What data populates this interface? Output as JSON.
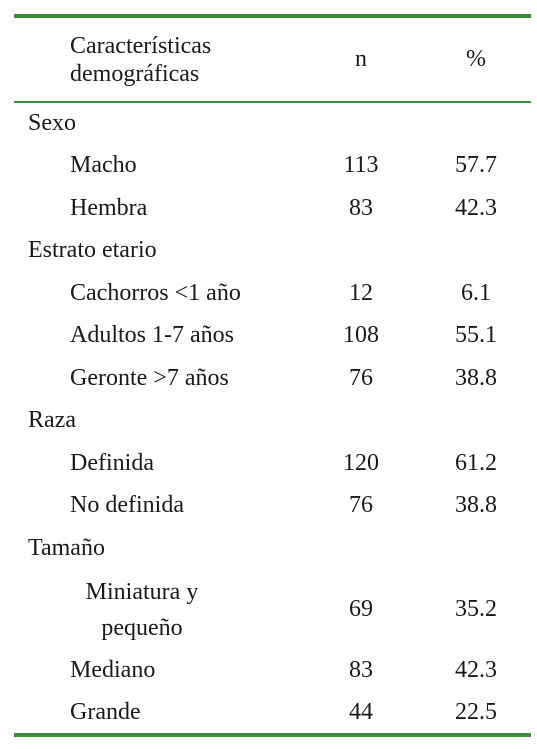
{
  "table": {
    "header": {
      "characteristic": "Características demográficas",
      "n": "n",
      "pct": "%"
    },
    "groups": [
      {
        "label": "Sexo",
        "items": [
          {
            "label": "Macho",
            "n": 113,
            "pct": 57.7
          },
          {
            "label": "Hembra",
            "n": 83,
            "pct": 42.3
          }
        ]
      },
      {
        "label": "Estrato etario",
        "items": [
          {
            "label": "Cachorros <1 año",
            "n": 12,
            "pct": 6.1
          },
          {
            "label": "Adultos 1-7 años",
            "n": 108,
            "pct": 55.1
          },
          {
            "label": "Geronte >7 años",
            "n": 76,
            "pct": 38.8
          }
        ]
      },
      {
        "label": "Raza",
        "items": [
          {
            "label": "Definida",
            "n": 120,
            "pct": 61.2
          },
          {
            "label": "No definida",
            "n": 76,
            "pct": 38.8
          }
        ]
      },
      {
        "label": "Tamaño",
        "items": [
          {
            "label": "Miniatura y pequeño",
            "n": 69,
            "pct": 35.2
          },
          {
            "label": "Mediano",
            "n": 83,
            "pct": 42.3
          },
          {
            "label": "Grande",
            "n": 44,
            "pct": 22.5
          }
        ]
      }
    ]
  }
}
